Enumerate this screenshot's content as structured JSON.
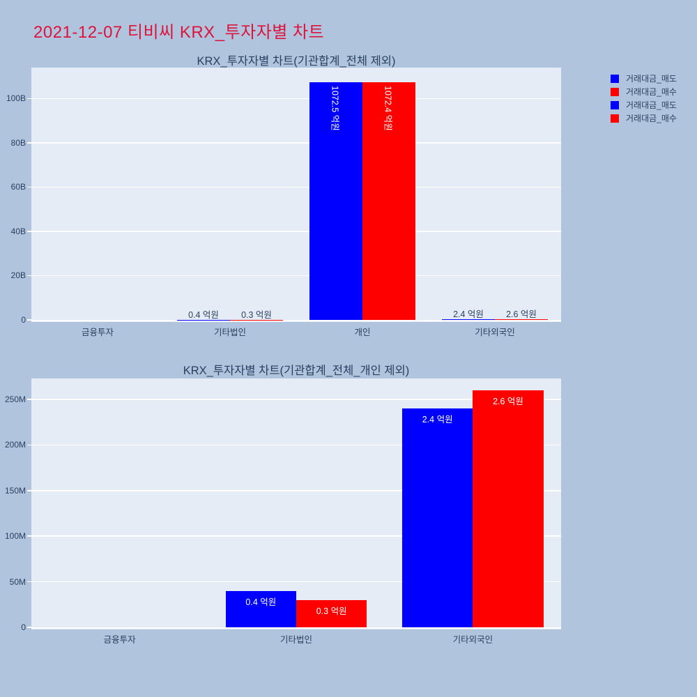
{
  "page": {
    "title": "2021-12-07 티비씨 KRX_투자자별 차트",
    "colors": {
      "background": "#B0C4DE",
      "plot_background": "#E5ECF6",
      "grid": "#FFFFFF",
      "text": "#2A3F5F",
      "title": "#DC143C",
      "sell_blue": "#0000FF",
      "buy_red": "#FF0000"
    }
  },
  "legend": {
    "items": [
      {
        "label": "거래대금_매도",
        "color": "#0000FF"
      },
      {
        "label": "거래대금_매수",
        "color": "#FF0000"
      },
      {
        "label": "거래대금_매도",
        "color": "#0000FF"
      },
      {
        "label": "거래대금_매수",
        "color": "#FF0000"
      }
    ]
  },
  "chart_data": [
    {
      "type": "bar",
      "title": "KRX_투자자별 차트(기관합계_전체 제외)",
      "categories": [
        "금융투자",
        "기타법인",
        "개인",
        "기타외국인"
      ],
      "unit": "억원",
      "series": [
        {
          "name": "거래대금_매도",
          "color": "#0000FF",
          "values_krw": [
            0,
            40000000,
            107250000000,
            240000000
          ],
          "labels": [
            "",
            "0.4 억원",
            "1072.5 억원",
            "2.4 억원"
          ]
        },
        {
          "name": "거래대금_매수",
          "color": "#FF0000",
          "values_krw": [
            0,
            30000000,
            107240000000,
            260000000
          ],
          "labels": [
            "",
            "0.3 억원",
            "1072.4 억원",
            "2.6 억원"
          ]
        }
      ],
      "yaxis": {
        "max": 114000000000,
        "ticks": [
          {
            "value": 0,
            "label": "0"
          },
          {
            "value": 20000000000,
            "label": "20B"
          },
          {
            "value": 40000000000,
            "label": "40B"
          },
          {
            "value": 60000000000,
            "label": "60B"
          },
          {
            "value": 80000000000,
            "label": "80B"
          },
          {
            "value": 100000000000,
            "label": "100B"
          }
        ]
      },
      "grid": true,
      "legend_position": "right"
    },
    {
      "type": "bar",
      "title": "KRX_투자자별 차트(기관합계_전체_개인 제외)",
      "categories": [
        "금융투자",
        "기타법인",
        "기타외국인"
      ],
      "unit": "억원",
      "series": [
        {
          "name": "거래대금_매도",
          "color": "#0000FF",
          "values_krw": [
            0,
            40000000,
            240000000
          ],
          "labels": [
            "",
            "0.4 억원",
            "2.4 억원"
          ]
        },
        {
          "name": "거래대금_매수",
          "color": "#FF0000",
          "values_krw": [
            0,
            30000000,
            260000000
          ],
          "labels": [
            "",
            "0.3 억원",
            "2.6 억원"
          ]
        }
      ],
      "yaxis": {
        "max": 273000000,
        "ticks": [
          {
            "value": 0,
            "label": "0"
          },
          {
            "value": 50000000,
            "label": "50M"
          },
          {
            "value": 100000000,
            "label": "100M"
          },
          {
            "value": 150000000,
            "label": "150M"
          },
          {
            "value": 200000000,
            "label": "200M"
          },
          {
            "value": 250000000,
            "label": "250M"
          }
        ]
      },
      "grid": true,
      "legend_position": "right"
    }
  ]
}
